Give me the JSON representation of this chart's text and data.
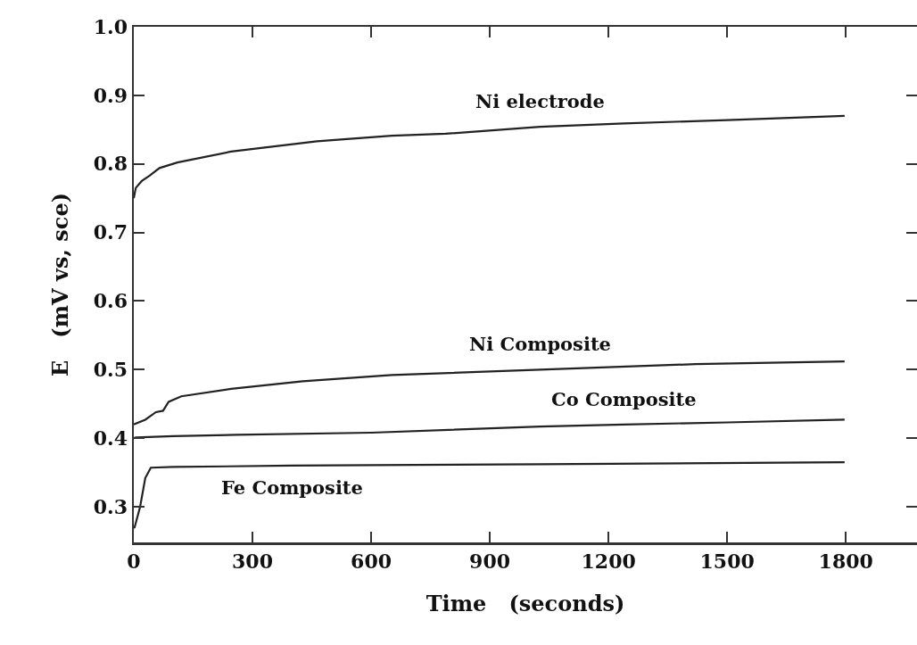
{
  "chart_data": {
    "type": "line",
    "xlabel": "Time   (seconds)",
    "ylabel": "E   (mV vs, sce)",
    "xlim": [
      0,
      1980
    ],
    "ylim": [
      0.248,
      1.0
    ],
    "xticks": [
      0,
      300,
      600,
      900,
      1200,
      1500,
      1800
    ],
    "yticks": [
      0.3,
      0.4,
      0.5,
      0.6,
      0.7,
      0.8,
      0.9,
      {
        "value": 1.0,
        "label": "1.0"
      }
    ],
    "grid": false,
    "legend": false,
    "line_style": "solid",
    "marker": "none",
    "series": [
      {
        "name": "Ni electrode",
        "color": "#222222",
        "x": [
          0,
          5,
          20,
          40,
          65,
          110,
          246,
          463,
          652,
          788,
          1027,
          1239,
          1500,
          1797
        ],
        "values": [
          0.75,
          0.765,
          0.775,
          0.783,
          0.794,
          0.802,
          0.818,
          0.833,
          0.841,
          0.844,
          0.854,
          0.859,
          0.864,
          0.87
        ]
      },
      {
        "name": "Ni Composite",
        "color": "#222222",
        "x": [
          0,
          29,
          56,
          74,
          88,
          120,
          246,
          427,
          652,
          1027,
          1420,
          1797
        ],
        "values": [
          0.42,
          0.427,
          0.438,
          0.44,
          0.453,
          0.461,
          0.472,
          0.483,
          0.492,
          0.5,
          0.508,
          0.512
        ]
      },
      {
        "name": "Co Composite",
        "color": "#222222",
        "x": [
          0,
          5,
          100,
          260,
          600,
          1027,
          1239,
          1500,
          1797
        ],
        "values": [
          0.4,
          0.401,
          0.403,
          0.405,
          0.408,
          0.417,
          0.42,
          0.423,
          0.427
        ]
      },
      {
        "name": "Fe Composite",
        "color": "#222222",
        "x": [
          0,
          2,
          16,
          29,
          43,
          100,
          400,
          1027,
          1797
        ],
        "values": [
          0.269,
          0.27,
          0.3,
          0.342,
          0.357,
          0.358,
          0.36,
          0.362,
          0.365
        ]
      }
    ]
  }
}
